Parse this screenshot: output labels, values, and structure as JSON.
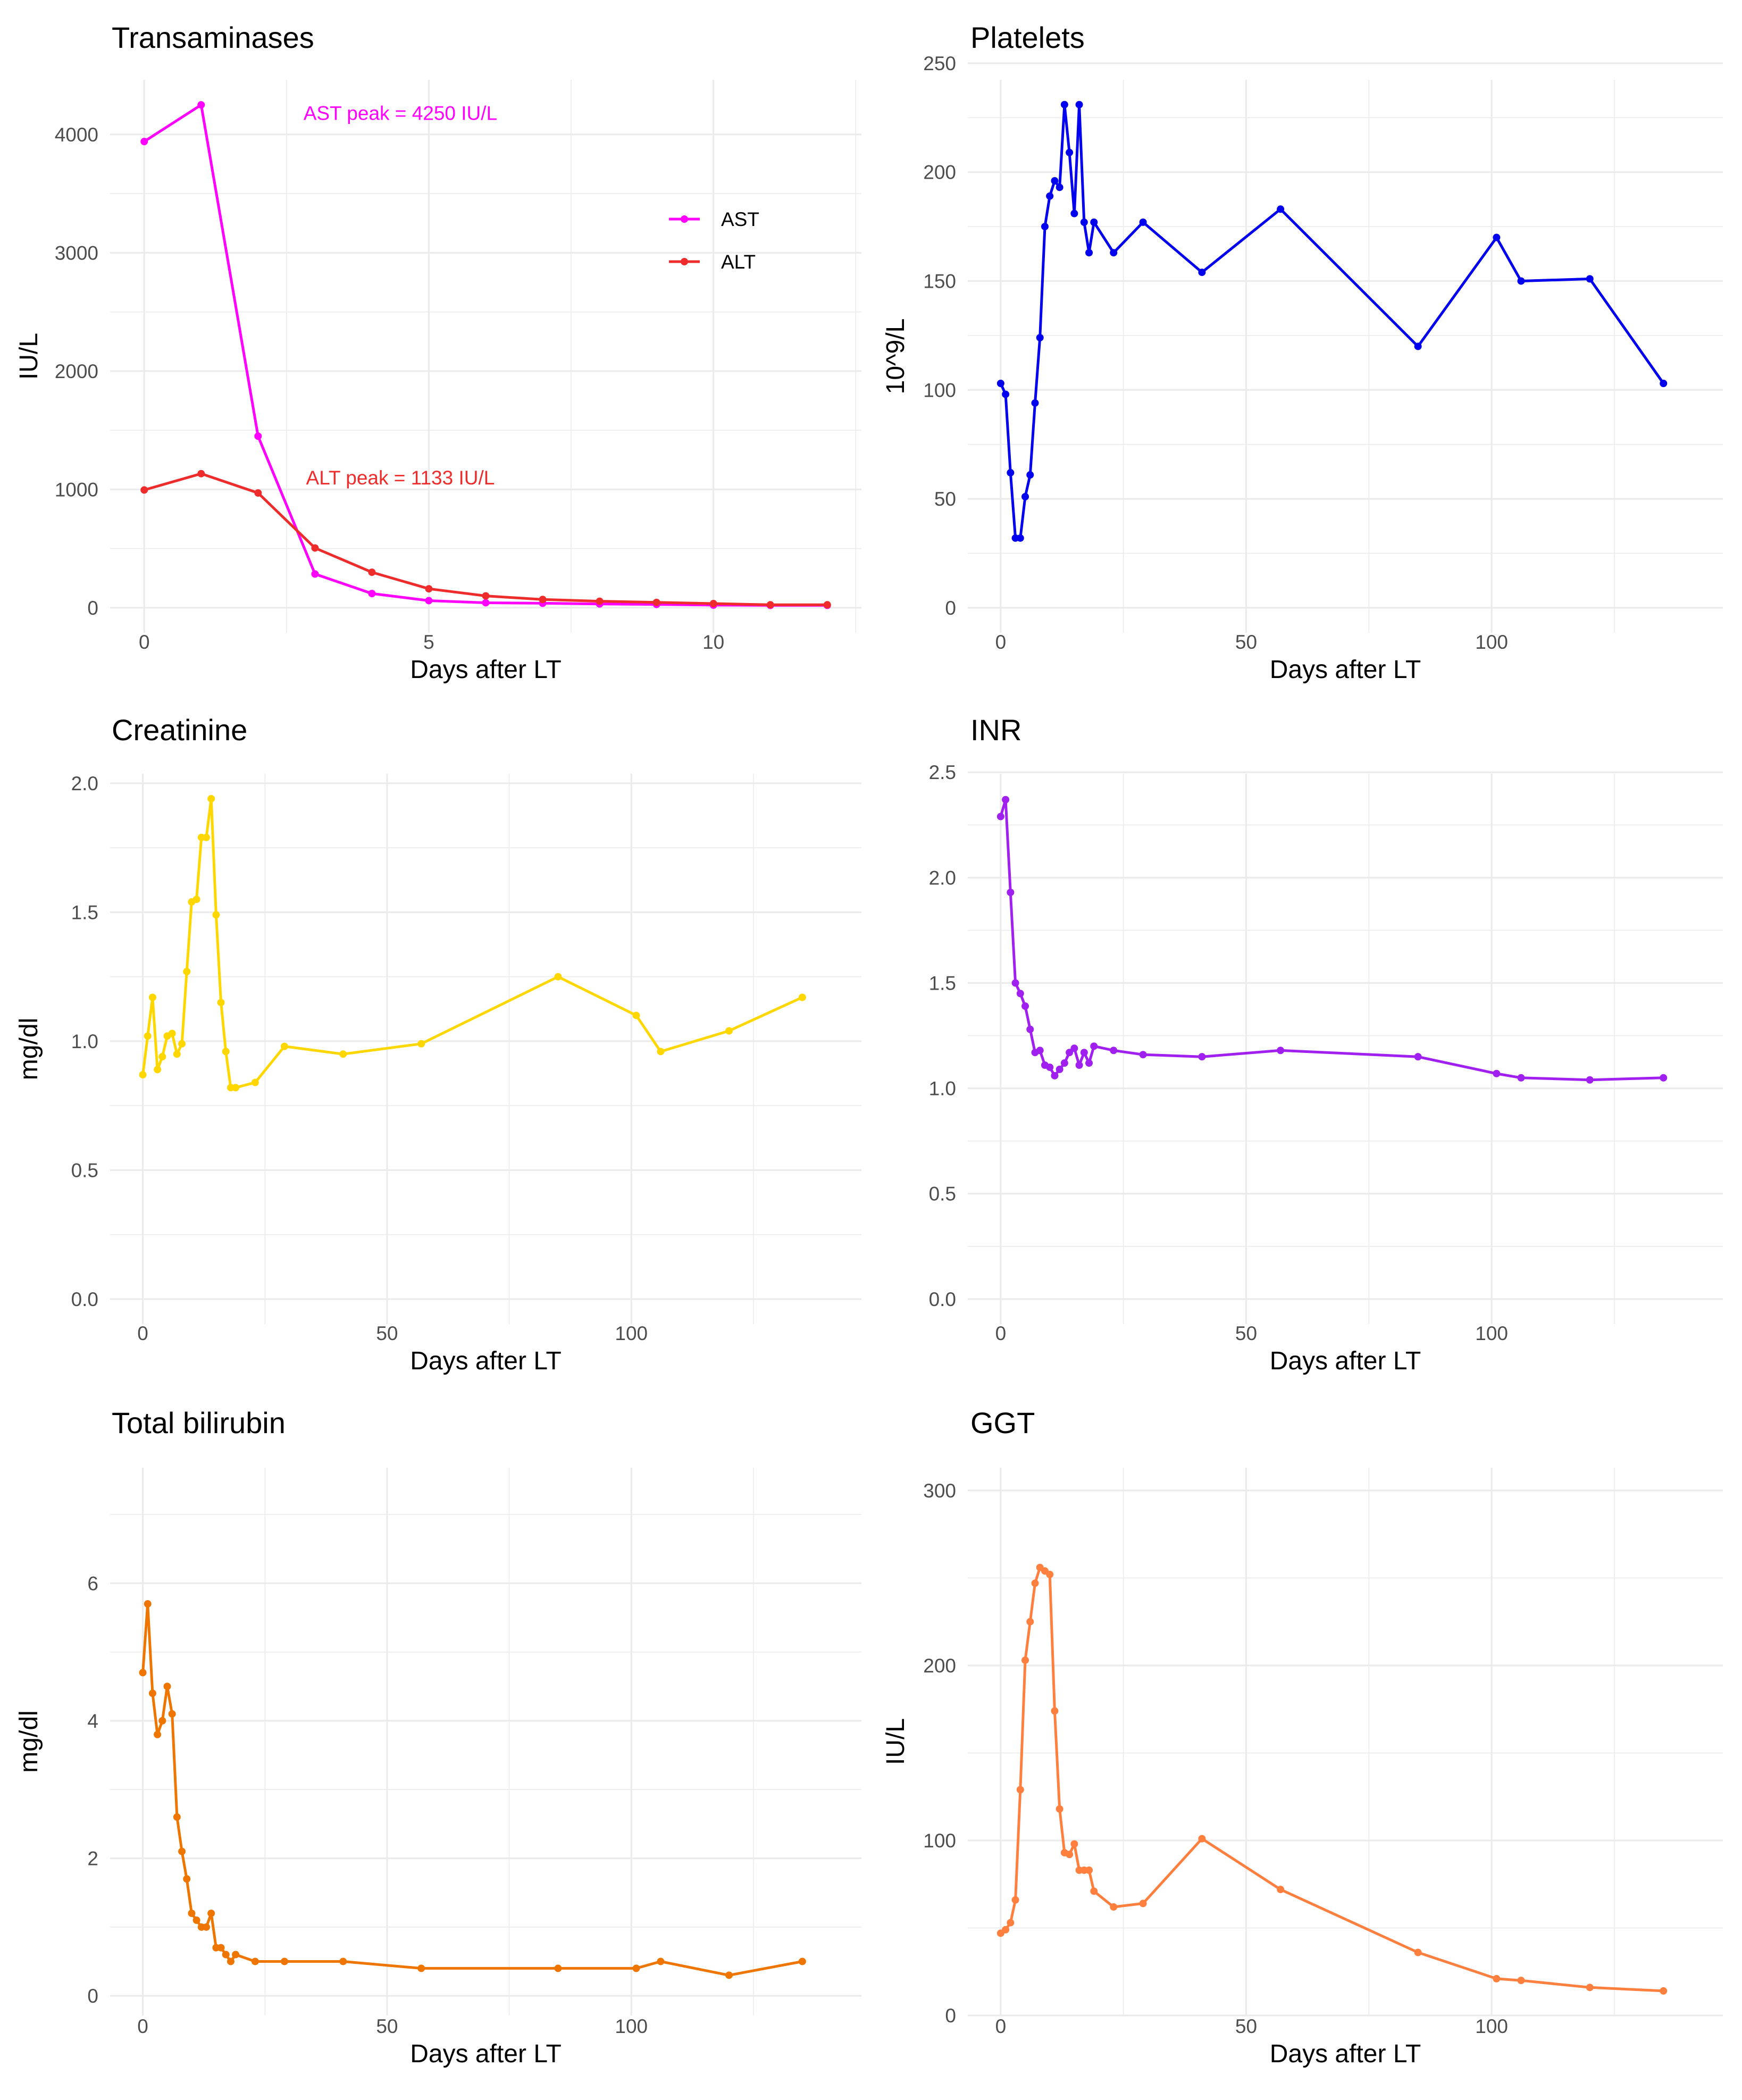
{
  "chart_data": [
    {
      "id": "transaminases",
      "type": "line",
      "title": "Transaminases",
      "xlabel": "Days after LT",
      "ylabel": "IU/L",
      "xlim": [
        -0.6,
        12.6
      ],
      "ylim": [
        -212,
        4462
      ],
      "xticks": [
        0,
        5,
        10
      ],
      "xtick_labels": [
        "0",
        "5",
        "10"
      ],
      "xminor": [
        2.5,
        7.5,
        12.5
      ],
      "yticks": [
        0,
        1000,
        2000,
        3000,
        4000
      ],
      "ytick_labels": [
        "0",
        "1000",
        "2000",
        "3000",
        "4000"
      ],
      "yminor": [
        500,
        1500,
        2500,
        3500
      ],
      "legend": {
        "position": "right",
        "entries": [
          {
            "label": "AST",
            "color": "#FF00FF"
          },
          {
            "label": "ALT",
            "color": "#EE2C2C"
          }
        ]
      },
      "annotations": [
        {
          "text": "AST peak = 4250 IU/L",
          "x": 4.5,
          "y": 4180,
          "color": "#FF00FF"
        },
        {
          "text": "ALT peak = 1133 IU/L",
          "x": 4.5,
          "y": 1100,
          "color": "#EE2C2C"
        }
      ],
      "series": [
        {
          "name": "AST",
          "color": "#FF00FF",
          "x": [
            0,
            1,
            2,
            3,
            4,
            5,
            6,
            7,
            8,
            9,
            10,
            11,
            12
          ],
          "y": [
            3940,
            4250,
            1450,
            285,
            120,
            60,
            42,
            38,
            32,
            28,
            22,
            20,
            20
          ]
        },
        {
          "name": "ALT",
          "color": "#EE2C2C",
          "x": [
            0,
            1,
            2,
            3,
            4,
            5,
            6,
            7,
            8,
            9,
            10,
            11,
            12
          ],
          "y": [
            995,
            1133,
            970,
            505,
            300,
            160,
            100,
            70,
            55,
            45,
            35,
            25,
            25
          ]
        }
      ]
    },
    {
      "id": "platelets",
      "type": "line",
      "title": "Platelets",
      "xlabel": "Days after LT",
      "ylabel": "10^9/L",
      "xlim": [
        -6.7,
        147.1
      ],
      "ylim": [
        -11.5,
        242.4
      ],
      "xticks": [
        0,
        50,
        100
      ],
      "xtick_labels": [
        "0",
        "50",
        "100"
      ],
      "xminor": [
        25,
        75,
        125
      ],
      "yticks": [
        0,
        50,
        100,
        150,
        200,
        250
      ],
      "ytick_labels": [
        "0",
        "50",
        "100",
        "150",
        "200",
        "250"
      ],
      "yminor": [
        25,
        75,
        125,
        175,
        225
      ],
      "series": [
        {
          "name": "Platelets",
          "color": "#0000EE",
          "x": [
            0,
            1,
            2,
            3,
            4,
            5,
            6,
            7,
            8,
            9,
            10,
            11,
            12,
            13,
            14,
            15,
            16,
            17,
            18,
            19,
            23,
            29,
            41,
            57,
            85,
            101,
            106,
            120,
            135
          ],
          "y": [
            103,
            98,
            62,
            32,
            32,
            51,
            61,
            94,
            124,
            175,
            189,
            196,
            193,
            231,
            209,
            181,
            231,
            177,
            163,
            177,
            163,
            177,
            154,
            183,
            120,
            170,
            150,
            151,
            103
          ]
        }
      ]
    },
    {
      "id": "creatinine",
      "type": "line",
      "title": "Creatinine",
      "xlabel": "Days after LT",
      "ylabel": "mg/dl",
      "xlim": [
        -6.7,
        147.1
      ],
      "ylim": [
        -0.097,
        2.037
      ],
      "xticks": [
        0,
        50,
        100
      ],
      "xtick_labels": [
        "0",
        "50",
        "100"
      ],
      "xminor": [
        25,
        75,
        125
      ],
      "yticks": [
        0,
        0.5,
        1,
        1.5,
        2
      ],
      "ytick_labels": [
        "0.0",
        "0.5",
        "1.0",
        "1.5",
        "2.0"
      ],
      "yminor": [
        0.25,
        0.75,
        1.25,
        1.75
      ],
      "series": [
        {
          "name": "Creatinine",
          "color": "#FFD700",
          "x": [
            0,
            1,
            2,
            3,
            4,
            5,
            6,
            7,
            8,
            9,
            10,
            11,
            12,
            13,
            14,
            15,
            16,
            17,
            18,
            19,
            23,
            29,
            41,
            57,
            85,
            101,
            106,
            120,
            135
          ],
          "y": [
            0.87,
            1.02,
            1.17,
            0.89,
            0.94,
            1.02,
            1.03,
            0.95,
            0.99,
            1.27,
            1.54,
            1.55,
            1.79,
            1.79,
            1.94,
            1.49,
            1.15,
            0.96,
            0.82,
            0.82,
            0.84,
            0.98,
            0.95,
            0.99,
            1.25,
            1.1,
            0.96,
            1.04,
            1.17
          ]
        }
      ]
    },
    {
      "id": "inr",
      "type": "line",
      "title": "INR",
      "xlabel": "Days after LT",
      "ylabel": "",
      "xlim": [
        -6.7,
        147.1
      ],
      "ylim": [
        -0.119,
        2.493
      ],
      "xticks": [
        0,
        50,
        100
      ],
      "xtick_labels": [
        "0",
        "50",
        "100"
      ],
      "xminor": [
        25,
        75,
        125
      ],
      "yticks": [
        0,
        0.5,
        1,
        1.5,
        2,
        2.5
      ],
      "ytick_labels": [
        "0.0",
        "0.5",
        "1.0",
        "1.5",
        "2.0",
        "2.5"
      ],
      "yminor": [
        0.25,
        0.75,
        1.25,
        1.75,
        2.25
      ],
      "series": [
        {
          "name": "INR",
          "color": "#A020F0",
          "x": [
            0,
            1,
            2,
            3,
            4,
            5,
            6,
            7,
            8,
            9,
            10,
            11,
            12,
            13,
            14,
            15,
            16,
            17,
            18,
            19,
            23,
            29,
            41,
            57,
            85,
            101,
            106,
            120,
            135
          ],
          "y": [
            2.29,
            2.37,
            1.93,
            1.5,
            1.45,
            1.39,
            1.28,
            1.17,
            1.18,
            1.11,
            1.1,
            1.06,
            1.09,
            1.12,
            1.17,
            1.19,
            1.11,
            1.17,
            1.12,
            1.2,
            1.18,
            1.16,
            1.15,
            1.18,
            1.15,
            1.07,
            1.05,
            1.04,
            1.05
          ]
        }
      ]
    },
    {
      "id": "bilirubin",
      "type": "line",
      "title": "Total bilirubin",
      "xlabel": "Days after LT",
      "ylabel": "mg/dl",
      "xlim": [
        -6.7,
        147.1
      ],
      "ylim": [
        -0.285,
        7.68
      ],
      "xticks": [
        0,
        50,
        100
      ],
      "xtick_labels": [
        "0",
        "50",
        "100"
      ],
      "xminor": [
        25,
        75,
        125
      ],
      "yticks": [
        0,
        2,
        4,
        6
      ],
      "ytick_labels": [
        "0",
        "2",
        "4",
        "6"
      ],
      "yminor": [
        1,
        3,
        5,
        7
      ],
      "series": [
        {
          "name": "Total bilirubin",
          "color": "#EE7600",
          "x": [
            0,
            1,
            2,
            3,
            4,
            5,
            6,
            7,
            8,
            9,
            10,
            11,
            12,
            13,
            14,
            15,
            16,
            17,
            18,
            19,
            23,
            29,
            41,
            57,
            85,
            101,
            106,
            120,
            135
          ],
          "y": [
            4.7,
            5.7,
            4.4,
            3.8,
            4.0,
            4.5,
            4.1,
            2.6,
            2.1,
            1.7,
            1.2,
            1.1,
            1.0,
            1.0,
            1.2,
            0.7,
            0.7,
            0.6,
            0.5,
            0.6,
            0.5,
            0.5,
            0.5,
            0.4,
            0.4,
            0.4,
            0.5,
            0.3,
            0.5
          ]
        }
      ]
    },
    {
      "id": "ggt",
      "type": "line",
      "title": "GGT",
      "xlabel": "Days after LT",
      "ylabel": "IU/L",
      "xlim": [
        -6.7,
        147.1
      ],
      "ylim": [
        0,
        313
      ],
      "xticks": [
        0,
        50,
        100
      ],
      "xtick_labels": [
        "0",
        "50",
        "100"
      ],
      "xminor": [
        25,
        75,
        125
      ],
      "yticks": [
        0,
        100,
        200,
        300
      ],
      "ytick_labels": [
        "0",
        "100",
        "200",
        "300"
      ],
      "yminor": [
        50,
        150,
        250
      ],
      "series": [
        {
          "name": "GGT",
          "color": "#FF7F3F",
          "x": [
            0,
            1,
            2,
            3,
            4,
            5,
            6,
            7,
            8,
            9,
            10,
            11,
            12,
            13,
            14,
            15,
            16,
            17,
            18,
            19,
            23,
            29,
            41,
            57,
            85,
            101,
            106,
            120,
            135
          ],
          "y": [
            47,
            49,
            53,
            66,
            129,
            203,
            225,
            247,
            256,
            254,
            252,
            174,
            118,
            93,
            92,
            98,
            83,
            83,
            83,
            71,
            62,
            64,
            101,
            72,
            36,
            21,
            20,
            16,
            14
          ]
        }
      ]
    }
  ]
}
